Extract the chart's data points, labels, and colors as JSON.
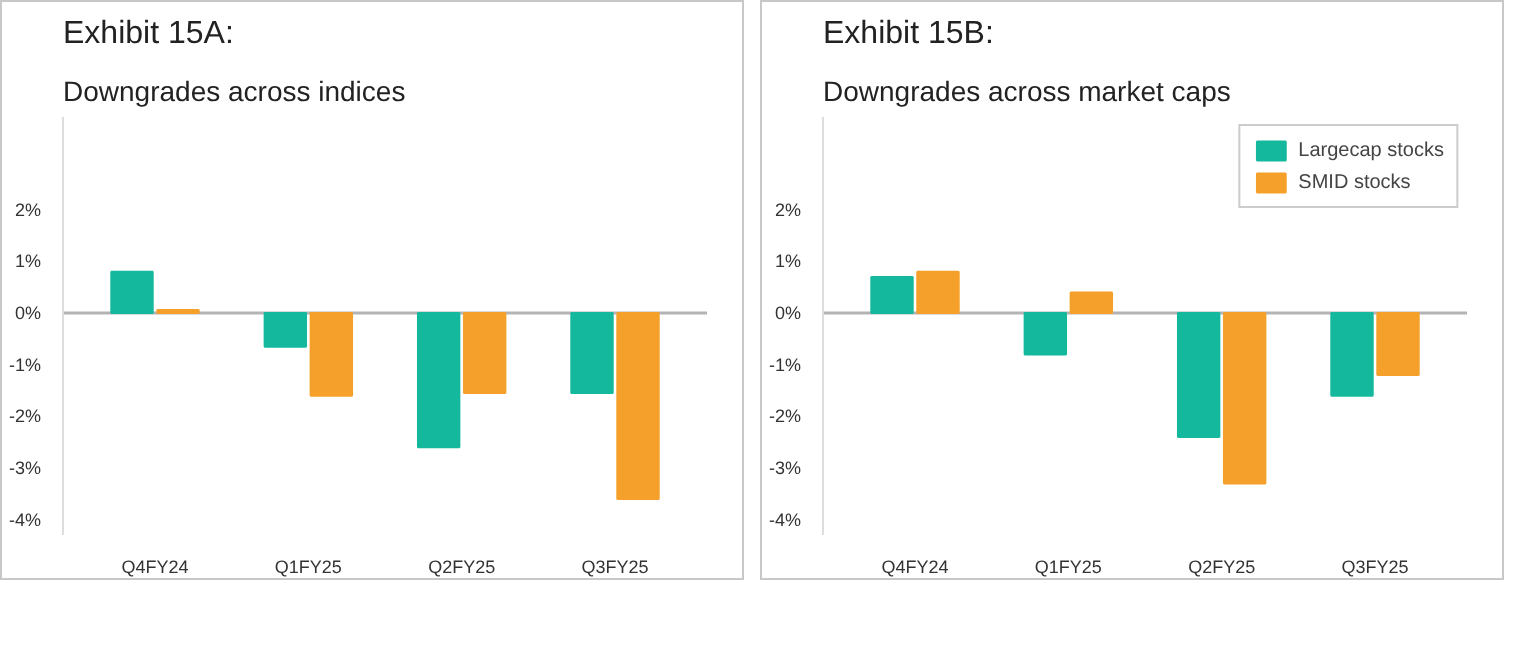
{
  "chart_data": [
    {
      "type": "bar",
      "title": "Exhibit 15A:",
      "subtitle": "Downgrades across indices",
      "categories": [
        "Q4FY24",
        "Q1FY25",
        "Q2FY25",
        "Q3FY25"
      ],
      "series": [
        {
          "color": "#14b89c",
          "values": [
            0.8,
            -0.65,
            -2.6,
            -1.55
          ]
        },
        {
          "color": "#f5a02a",
          "values": [
            0.06,
            -1.6,
            -1.55,
            -3.6
          ]
        }
      ],
      "ylim": [
        -4.3,
        3.8
      ],
      "yticks": [
        {
          "value": -4,
          "label": "-4%"
        },
        {
          "value": -3,
          "label": "-3%"
        },
        {
          "value": -2,
          "label": "-2%"
        },
        {
          "value": -1,
          "label": "-1%"
        },
        {
          "value": 0,
          "label": "0%"
        },
        {
          "value": 1,
          "label": "1%"
        },
        {
          "value": 2,
          "label": "2%"
        }
      ],
      "ref_lines": [
        {
          "axis": "y",
          "value": 0,
          "color": "#b3b3b3"
        }
      ],
      "grid": false,
      "legend": false
    },
    {
      "type": "bar",
      "title": "Exhibit 15B:",
      "subtitle": "Downgrades across market caps",
      "categories": [
        "Q4FY24",
        "Q1FY25",
        "Q2FY25",
        "Q3FY25"
      ],
      "series": [
        {
          "name": "Largecap stocks",
          "color": "#14b89c",
          "values": [
            0.7,
            -0.8,
            -2.4,
            -1.6
          ]
        },
        {
          "name": "SMID stocks",
          "color": "#f5a02a",
          "values": [
            0.8,
            0.4,
            -3.3,
            -1.2
          ]
        }
      ],
      "ylim": [
        -4.3,
        3.8
      ],
      "yticks": [
        {
          "value": -4,
          "label": "-4%"
        },
        {
          "value": -3,
          "label": "-3%"
        },
        {
          "value": -2,
          "label": "-2%"
        },
        {
          "value": -1,
          "label": "-1%"
        },
        {
          "value": 0,
          "label": "0%"
        },
        {
          "value": 1,
          "label": "1%"
        },
        {
          "value": 2,
          "label": "2%"
        }
      ],
      "ref_lines": [
        {
          "axis": "y",
          "value": 0,
          "color": "#b3b3b3"
        }
      ],
      "grid": false,
      "legend": "top right"
    }
  ]
}
